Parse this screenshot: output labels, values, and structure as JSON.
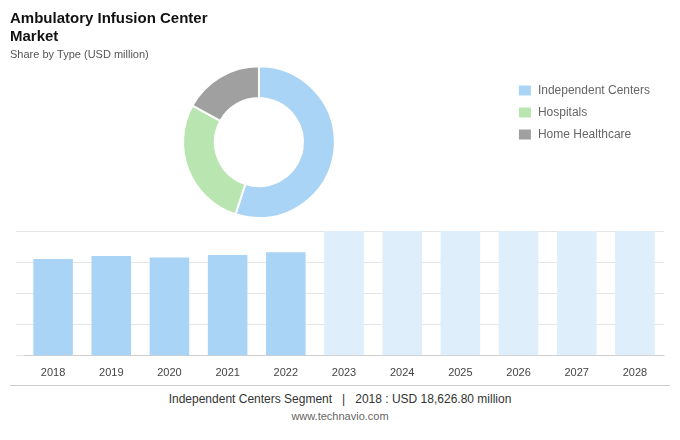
{
  "chart_data": [
    {
      "type": "doughnut",
      "title": "Ambulatory Infusion Center\nMarket",
      "subtitle": "Share by Type (USD million)",
      "categories": [
        "Independent Centers",
        "Hospitals",
        "Home Healthcare"
      ],
      "values": [
        55,
        28,
        17
      ],
      "colors": [
        "#aad4f5",
        "#b8e5b0",
        "#a0a0a0"
      ],
      "legend": "right"
    },
    {
      "type": "bar",
      "categories": [
        "2018",
        "2019",
        "2020",
        "2021",
        "2022",
        "2023",
        "2024",
        "2025",
        "2026",
        "2027",
        "2028"
      ],
      "values": [
        18626,
        19200,
        18900,
        19400,
        19900,
        24000,
        24000,
        24000,
        24000,
        24000,
        24000
      ],
      "colors": [
        "#aad4f5",
        "#aad4f5",
        "#aad4f5",
        "#aad4f5",
        "#aad4f5",
        "#deeefa",
        "#deeefa",
        "#deeefa",
        "#deeefa",
        "#deeefa",
        "#deeefa"
      ],
      "ylim": [
        0,
        24000
      ],
      "yticks": [
        0,
        6000,
        12000,
        18000,
        24000
      ],
      "grid": true,
      "tick_labels": "x",
      "annotations": [
        "Independent Centers Segment",
        "|",
        "2018 : USD 18,626.80 million",
        "www.technavio.com"
      ]
    }
  ]
}
